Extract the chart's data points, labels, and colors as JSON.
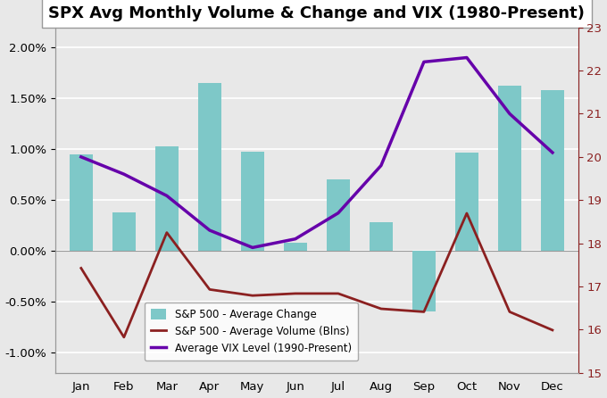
{
  "title": "SPX Avg Monthly Volume & Change and VIX (1980-Present)",
  "months": [
    "Jan",
    "Feb",
    "Mar",
    "Apr",
    "May",
    "Jun",
    "Jul",
    "Aug",
    "Sep",
    "Oct",
    "Nov",
    "Dec"
  ],
  "avg_change": [
    0.0095,
    0.0038,
    0.0103,
    0.0165,
    0.0098,
    0.0008,
    0.007,
    0.0028,
    -0.006,
    0.0097,
    0.0163,
    0.0158
  ],
  "avg_volume": [
    -0.0017,
    -0.0085,
    0.0018,
    -0.0038,
    -0.0044,
    -0.0042,
    -0.0042,
    -0.0057,
    -0.006,
    0.0037,
    -0.006,
    -0.0078
  ],
  "avg_vix": [
    20.0,
    19.6,
    19.1,
    18.3,
    17.9,
    18.1,
    18.7,
    19.8,
    22.2,
    22.3,
    21.0,
    20.1
  ],
  "bar_color": "#7EC8C8",
  "volume_color": "#8B2020",
  "vix_color": "#6600AA",
  "left_ylim": [
    -0.012,
    0.022
  ],
  "right_ylim": [
    15,
    23
  ],
  "left_yticks": [
    -0.01,
    -0.005,
    0.0,
    0.005,
    0.01,
    0.015,
    0.02
  ],
  "left_yticklabels": [
    "-1.00%",
    "-0.50%",
    "0.00%",
    "0.50%",
    "1.00%",
    "1.50%",
    "2.00%"
  ],
  "right_yticks": [
    15,
    16,
    17,
    18,
    19,
    20,
    21,
    22,
    23
  ],
  "bg_color": "#E8E8E8",
  "plot_bg_color": "#E8E8E8",
  "legend_labels": [
    "S&P 500 - Average Change",
    "S&P 500 - Average Volume (Blns)",
    "Average VIX Level (1990-Present)"
  ],
  "title_fontsize": 13,
  "tick_fontsize": 9.5,
  "legend_fontsize": 8.5
}
